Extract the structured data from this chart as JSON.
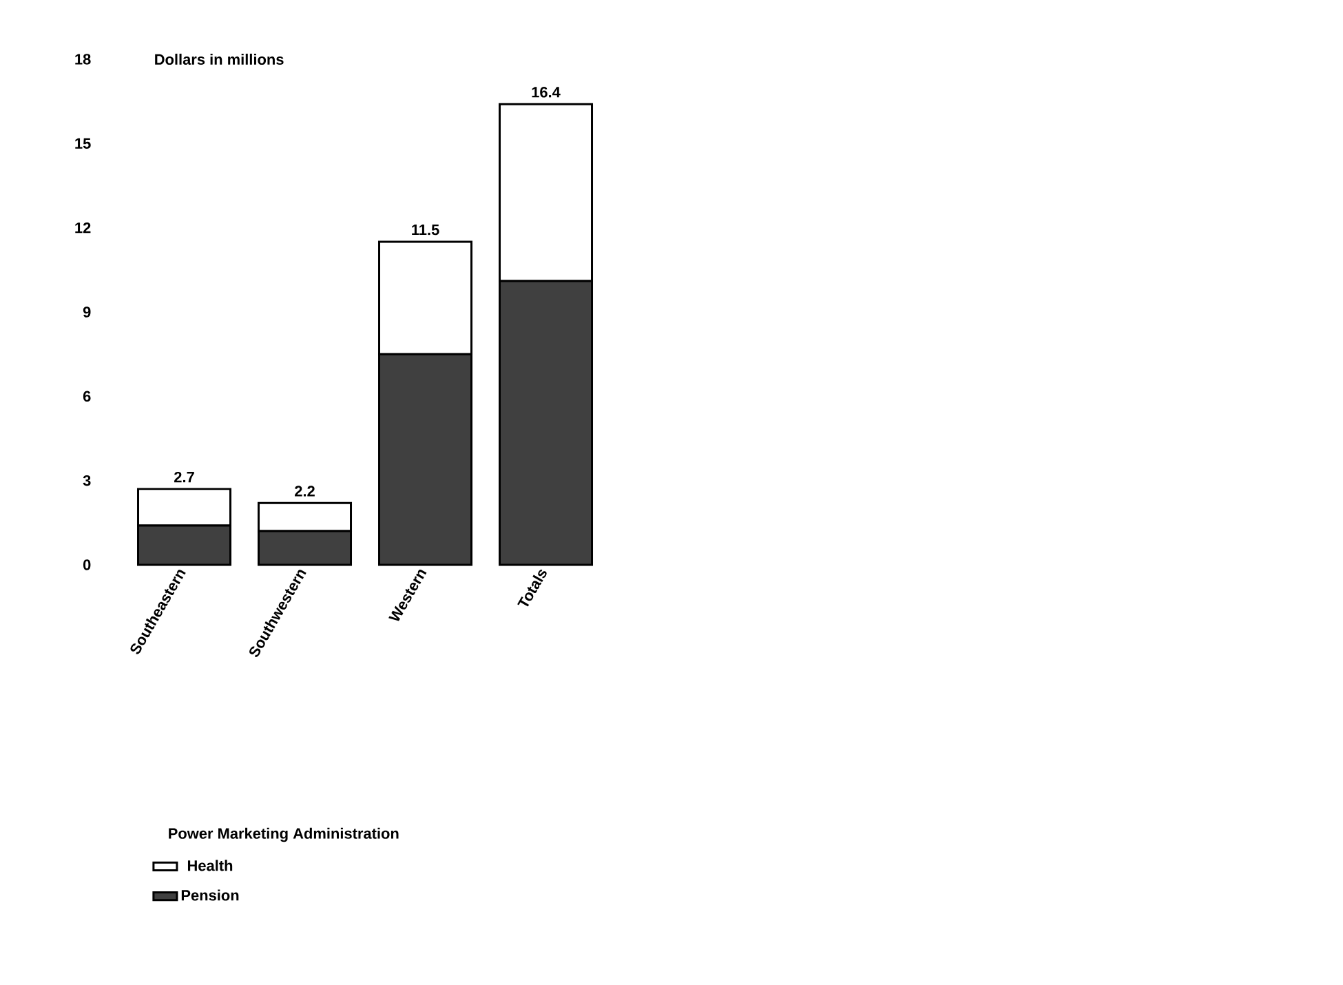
{
  "chart_data": {
    "type": "bar",
    "stacked": true,
    "ylabel": "Dollars in millions",
    "annotations": [
      "Power Marketing Administration"
    ],
    "categories": [
      "Southeastern",
      "Southwestern",
      "Western",
      "Totals"
    ],
    "series": [
      {
        "name": "Pension",
        "color": "#404040",
        "values": [
          1.4,
          1.2,
          7.5,
          10.1
        ]
      },
      {
        "name": "Health",
        "color": "#ffffff",
        "values": [
          1.3,
          1.0,
          4.0,
          6.3
        ]
      }
    ],
    "totals": [
      "2.7",
      "2.2",
      "11.5",
      "16.4"
    ],
    "ylim": [
      0,
      18
    ],
    "yticks": [
      0,
      3,
      6,
      9,
      12,
      15,
      18
    ],
    "grid": false,
    "legend": "bottom"
  }
}
